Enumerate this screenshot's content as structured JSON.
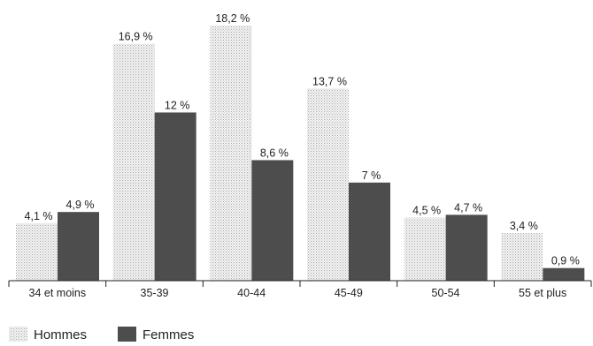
{
  "chart_data": {
    "type": "bar",
    "categories": [
      "34 et moins",
      "35-39",
      "40-44",
      "45-49",
      "50-54",
      "55 et plus"
    ],
    "series": [
      {
        "name": "Hommes",
        "values": [
          4.1,
          16.9,
          18.2,
          13.7,
          4.5,
          3.4
        ],
        "labels": [
          "4,1 %",
          "16,9 %",
          "18,2 %",
          "13,7 %",
          "4,5 %",
          "3,4 %"
        ],
        "color": "#e6e6e6"
      },
      {
        "name": "Femmes",
        "values": [
          4.9,
          12,
          8.6,
          7,
          4.7,
          0.9
        ],
        "labels": [
          "4,9 %",
          "12 %",
          "8,6 %",
          "7 %",
          "4,7 %",
          "0,9 %"
        ],
        "color": "#4d4d4d"
      }
    ],
    "ylim": [
      0,
      18.2
    ],
    "grid": false,
    "legend": "bottom-left"
  }
}
